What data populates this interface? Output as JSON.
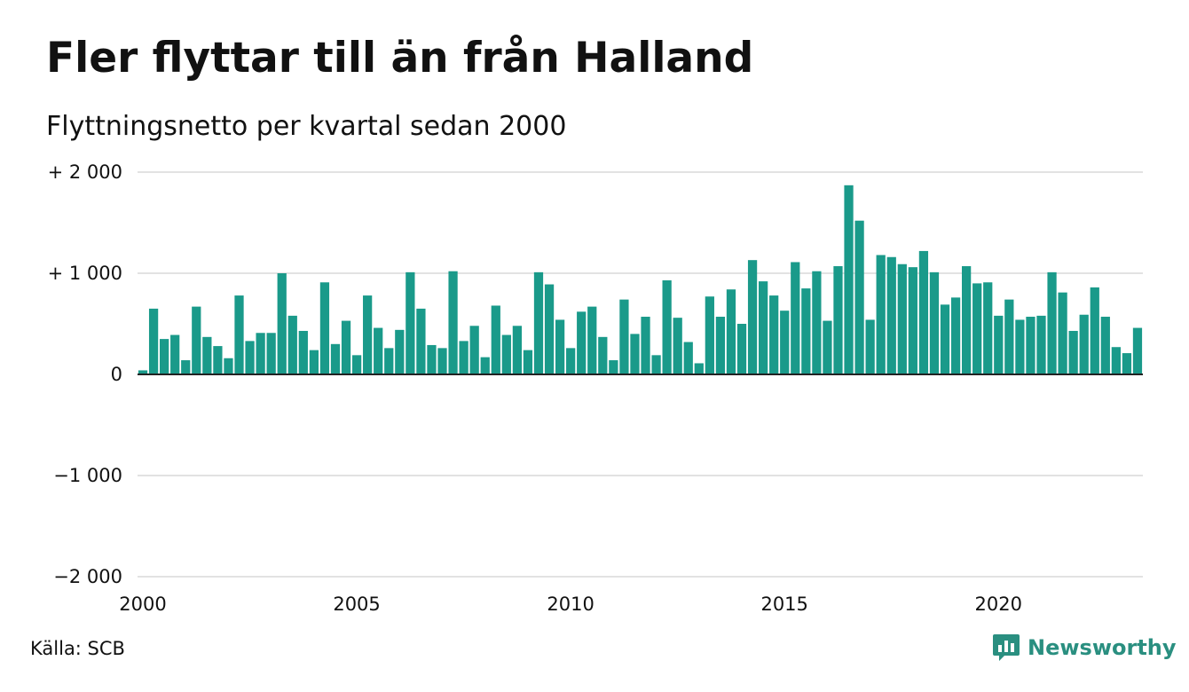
{
  "title": "Fler flyttar till än från Halland",
  "subtitle": "Flyttningsnetto per kvartal sedan 2000",
  "source": "Källa: SCB",
  "brand": {
    "name": "Newsworthy",
    "icon": "newsworthy-logo-icon",
    "color": "#2a8f80"
  },
  "colors": {
    "bar": "#1a9a8a",
    "grid": "#e2e2e2",
    "zero_line": "#222222"
  },
  "chart_data": {
    "type": "bar",
    "title": "Fler flyttar till än från Halland",
    "subtitle": "Flyttningsnetto per kvartal sedan 2000",
    "xlabel": "",
    "ylabel": "",
    "ylim": [
      -2000,
      2000
    ],
    "yticks": [
      {
        "value": 2000,
        "label": "+ 2 000"
      },
      {
        "value": 1000,
        "label": "+ 1 000"
      },
      {
        "value": 0,
        "label": "0"
      },
      {
        "value": -1000,
        "label": "−1 000"
      },
      {
        "value": -2000,
        "label": "−2 000"
      }
    ],
    "xticks": [
      "2000",
      "2005",
      "2010",
      "2015",
      "2020"
    ],
    "grid": true,
    "start": "2000 Q1",
    "frequency": "quarterly",
    "values": [
      40,
      650,
      350,
      390,
      140,
      670,
      370,
      280,
      160,
      780,
      330,
      410,
      410,
      1000,
      580,
      430,
      240,
      910,
      300,
      530,
      190,
      780,
      460,
      260,
      440,
      1010,
      650,
      290,
      260,
      1020,
      330,
      480,
      170,
      680,
      390,
      480,
      240,
      1010,
      890,
      540,
      260,
      620,
      670,
      370,
      140,
      740,
      400,
      570,
      190,
      930,
      560,
      320,
      110,
      770,
      570,
      840,
      500,
      1130,
      920,
      780,
      630,
      1110,
      850,
      1020,
      530,
      1070,
      1870,
      1520,
      540,
      1180,
      1160,
      1090,
      1060,
      1220,
      1010,
      690,
      760,
      1070,
      900,
      910,
      580,
      740,
      540,
      570,
      580,
      1010,
      810,
      430,
      590,
      860,
      570,
      270,
      210,
      460
    ]
  }
}
